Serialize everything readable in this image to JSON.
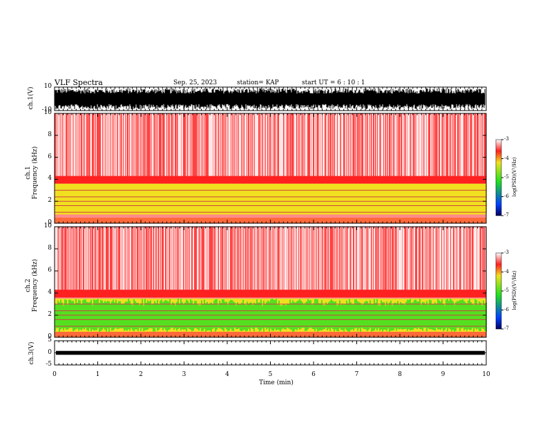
{
  "header": {
    "title": "VLF Spectra",
    "date": "Sep. 25, 2023",
    "station": "station= KAP",
    "start": "start  UT =   6 : 10 : 1"
  },
  "labels": {
    "ch1_wave": "ch.1(V)",
    "ch1_spec": "ch.1\nFrequency (kHz)",
    "ch1_spec_a": "ch.1",
    "ch1_spec_b": "Frequency (kHz)",
    "ch2_spec_a": "ch.2",
    "ch2_spec_b": "Frequency (kHz)",
    "ch3_wave": "ch.3(V)",
    "xlabel": "Time (min)",
    "colorbar_label": "log(PSD)(V²/Hz)"
  },
  "colors": {
    "red": "#ff2020",
    "yellow": "#f0e020",
    "green": "#20e020",
    "blue": "#0040ff",
    "navy": "#000060"
  },
  "chart_data": [
    {
      "type": "line",
      "name": "ch.1 waveform",
      "ylabel": "ch.1(V)",
      "ylim": [
        -10,
        10
      ],
      "yticks": [
        "10",
        "-10"
      ],
      "xlim": [
        0,
        10
      ]
    },
    {
      "type": "heatmap",
      "name": "ch.1 spectrogram",
      "ylabel": "Frequency (kHz)",
      "ylim": [
        0,
        10
      ],
      "yticks": [
        "10",
        "8",
        "6",
        "4",
        "2",
        "0"
      ],
      "xlim": [
        0,
        10
      ],
      "colorbar": {
        "range": [
          -7,
          -3
        ],
        "ticks": [
          "-3",
          "-4",
          "-5",
          "-6",
          "-7"
        ],
        "label": "log(PSD)(V²/Hz)"
      },
      "bands": [
        {
          "from_khz": 4,
          "to_khz": 10,
          "level": "red"
        },
        {
          "from_khz": 0.8,
          "to_khz": 3.6,
          "level": "yellow"
        }
      ]
    },
    {
      "type": "heatmap",
      "name": "ch.2 spectrogram",
      "ylabel": "Frequency (kHz)",
      "ylim": [
        0,
        10
      ],
      "yticks": [
        "10",
        "8",
        "6",
        "4",
        "2",
        "0"
      ],
      "xlim": [
        0,
        10
      ],
      "colorbar": {
        "range": [
          -7,
          -3
        ],
        "ticks": [
          "-3",
          "-4",
          "-5",
          "-6",
          "-7"
        ],
        "label": "log(PSD)(V²/Hz)"
      },
      "bands": [
        {
          "from_khz": 4,
          "to_khz": 10,
          "level": "red"
        },
        {
          "from_khz": 0.5,
          "to_khz": 3.5,
          "level": "green"
        }
      ]
    },
    {
      "type": "line",
      "name": "ch.3 waveform",
      "ylabel": "ch.3(V)",
      "ylim": [
        -5,
        5
      ],
      "yticks": [
        "5",
        "0",
        "-5"
      ],
      "xlim": [
        0,
        10
      ]
    }
  ],
  "xaxis": {
    "ticks": [
      "0",
      "1",
      "2",
      "3",
      "4",
      "5",
      "6",
      "7",
      "8",
      "9",
      "10"
    ],
    "label": "Time (min)"
  }
}
